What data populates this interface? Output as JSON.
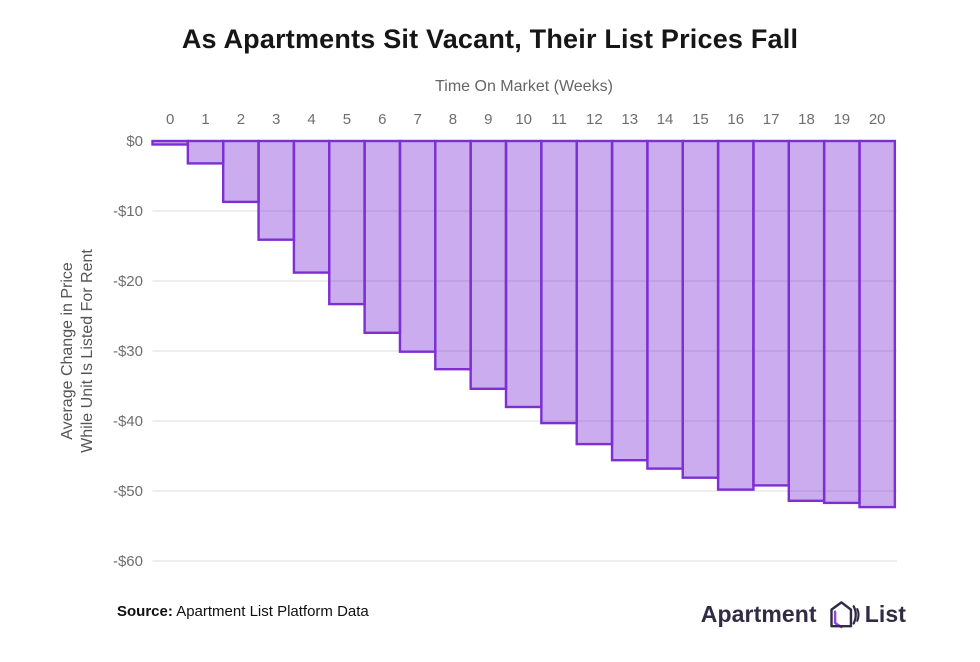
{
  "title": "As Apartments Sit Vacant, Their List Prices Fall",
  "chart_data": {
    "type": "bar",
    "title": "As Apartments Sit Vacant, Their List Prices Fall",
    "xlabel": "Time On Market (Weeks)",
    "ylabel": "Average Change in Price While Unit Is Listed For Rent",
    "ylabel_lines": [
      "Average Change in Price",
      "While Unit Is Listed For Rent"
    ],
    "categories": [
      "0",
      "1",
      "2",
      "3",
      "4",
      "5",
      "6",
      "7",
      "8",
      "9",
      "10",
      "11",
      "12",
      "13",
      "14",
      "15",
      "16",
      "17",
      "18",
      "19",
      "20"
    ],
    "values": [
      -0.5,
      -3.2,
      -8.7,
      -14.1,
      -18.8,
      -23.3,
      -27.4,
      -30.1,
      -32.6,
      -35.4,
      -38.0,
      -40.3,
      -43.3,
      -45.6,
      -46.8,
      -48.1,
      -49.8,
      -49.2,
      -51.4,
      -51.7,
      -52.3
    ],
    "ylim": [
      -60,
      0
    ],
    "yticks": {
      "labels": [
        "$0",
        "-$10",
        "-$20",
        "-$30",
        "-$40",
        "-$50",
        "-$60"
      ],
      "values": [
        0,
        -10,
        -20,
        -30,
        -40,
        -50,
        -60
      ]
    },
    "grid": "horizontal",
    "legend": "none",
    "colors": {
      "bar_fill": "rgba(125,47,212,0.40)",
      "bar_stroke": "#7d2fd4",
      "gridline": "#dcdcdc",
      "tick_text": "#6e6e6e"
    }
  },
  "source": {
    "label": "Source:",
    "text": "Apartment List Platform Data"
  },
  "logo": {
    "word1": "Apartment",
    "word2": "List",
    "icon": "house-echo-icon",
    "text_color": "#312c44",
    "accent_color": "#8b45e8"
  }
}
